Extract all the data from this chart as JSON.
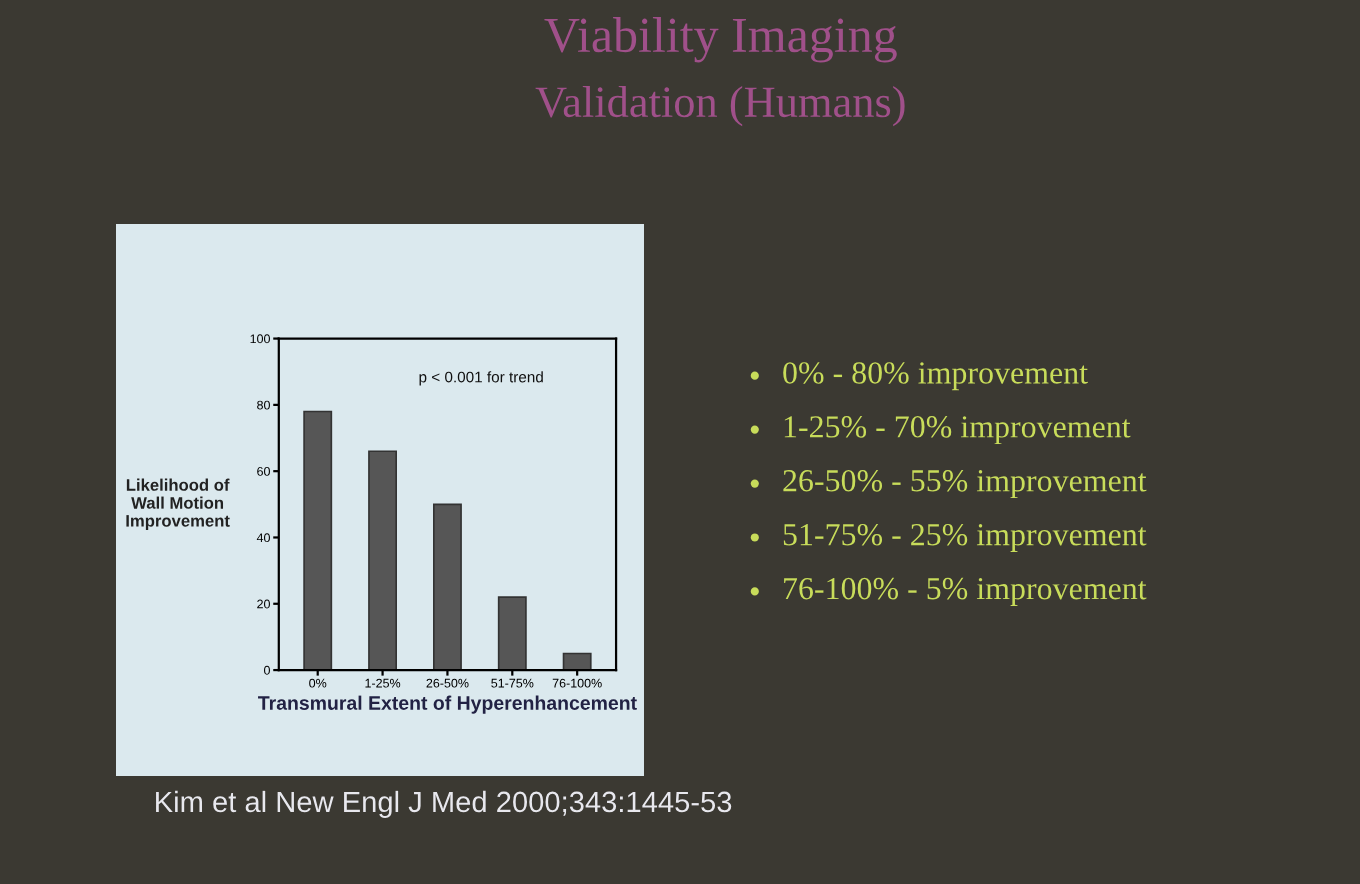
{
  "chart_data": {
    "type": "bar",
    "title": "Viability Imaging",
    "subtitle": "Validation (Humans)",
    "xlabel": "Transmural Extent of Hyperenhancement",
    "ylabel": "Likelihood of\nWall Motion\nImprovement",
    "categories": [
      "0%",
      "1-25%",
      "26-50%",
      "51-75%",
      "76-100%"
    ],
    "values": [
      78,
      66,
      50,
      22,
      5
    ],
    "color": "#565656",
    "ylim": [
      0,
      100
    ],
    "yticks": [
      0,
      20,
      40,
      60,
      80,
      100
    ],
    "grid": false,
    "legend": false,
    "annotations": [
      {
        "text": "p < 0.001 for trend"
      },
      "0% - 80% improvement",
      "1-25% - 70% improvement",
      "26-50% - 55% improvement",
      "51-75% - 25% improvement",
      "76-100% - 5% improvement",
      "Kim et al New Engl J Med 2000;343:1445-53"
    ]
  }
}
